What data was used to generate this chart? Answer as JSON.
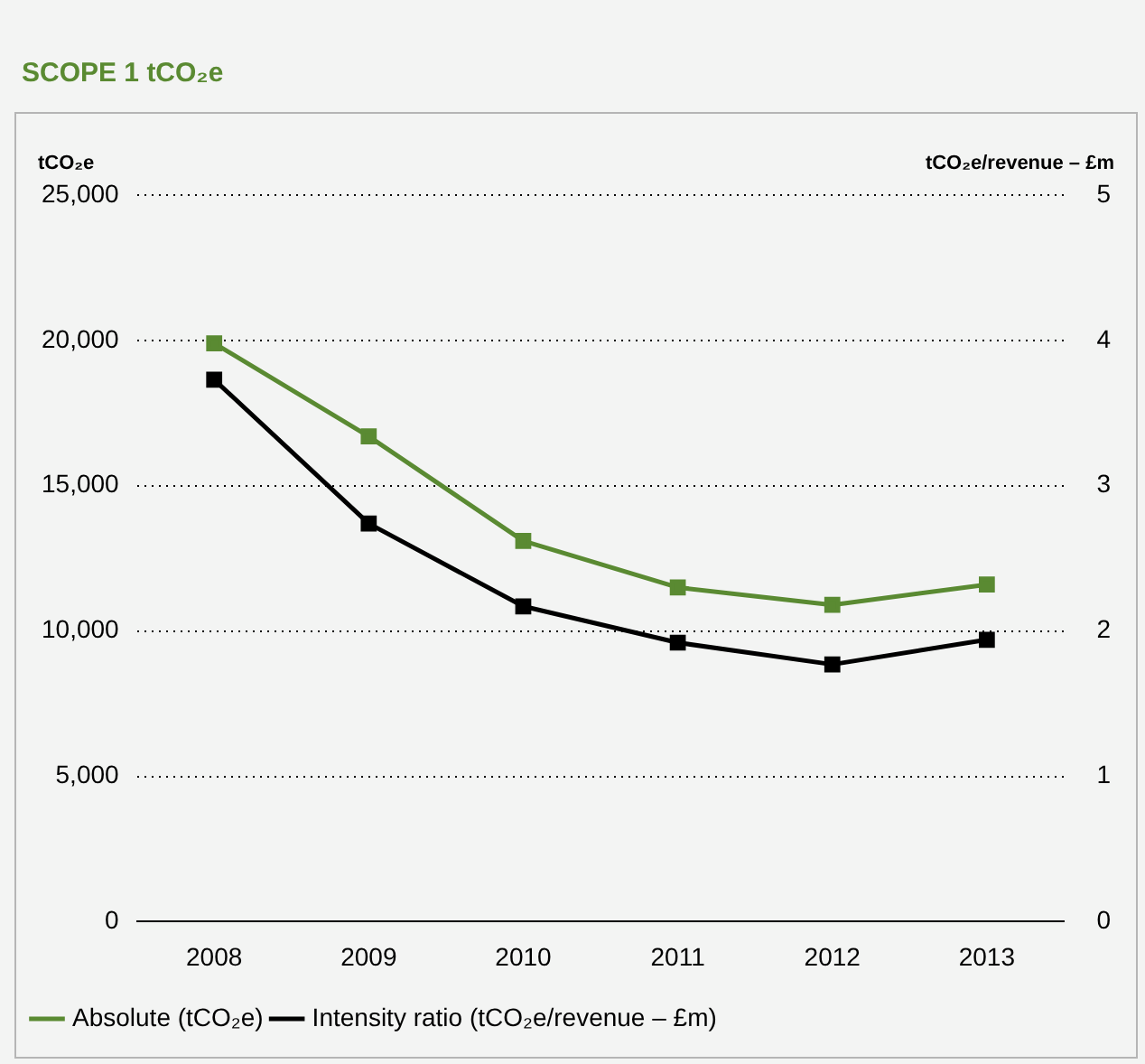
{
  "chart_data": {
    "type": "line",
    "title": "SCOPE 1 tCO₂e",
    "ylabel": "tCO₂e",
    "y2label": "tCO₂e/revenue – £m",
    "categories": [
      "2008",
      "2009",
      "2010",
      "2011",
      "2012",
      "2013"
    ],
    "series": [
      {
        "name": "Absolute (tCO₂e)",
        "color": "#5a8a32",
        "values": [
          19900,
          16700,
          13100,
          11500,
          10900,
          11600
        ]
      },
      {
        "name": "Intensity ratio (tCO₂e/revenue – £m)",
        "color": "#000000",
        "axis": "y2",
        "values": [
          3.73,
          2.74,
          2.17,
          1.92,
          1.77,
          1.94
        ]
      }
    ],
    "ylim": [
      0,
      25000
    ],
    "yticks": [
      {
        "value": 0,
        "label": "0"
      },
      {
        "value": 5000,
        "label": "5,000"
      },
      {
        "value": 10000,
        "label": "10,000"
      },
      {
        "value": 15000,
        "label": "15,000"
      },
      {
        "value": 20000,
        "label": "20,000"
      },
      {
        "value": 25000,
        "label": "25,000"
      }
    ],
    "y2lim": [
      0,
      5
    ],
    "y2ticks": [
      0,
      1,
      2,
      3,
      4,
      5
    ],
    "grid": "y",
    "legend": "bottom left",
    "marker": "square",
    "line_style": "solid"
  }
}
